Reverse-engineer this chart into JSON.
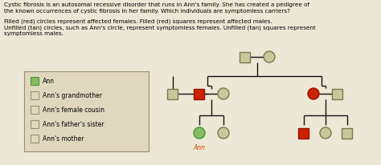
{
  "bg_color": "#ede8d5",
  "tan_fill": "#c8c89a",
  "tan_edge": "#7a7850",
  "red_fill": "#cc2200",
  "red_edge": "#991100",
  "green_fill": "#88bb66",
  "green_edge": "#449933",
  "legend_bg": "#e0d8be",
  "legend_edge": "#999070",
  "white_fill": "#e0d8be",
  "white_edge": "#999070",
  "line_color": "#111111",
  "text_line1": "Cystic fibrosis is an autosomal recessive disorder that runs in Ann's family. She has created a pedigree of",
  "text_line2": "the known occurrences of cystic fibrosis in her family. Which individuals are symptomless carriers?",
  "text_line3": "Filled (red) circles represent affected females. Filled (red) squares represent affected males.",
  "text_line4": "Unfilled (tan) circles, such as Ann's circle, represent symptomless females. Unfilled (tan) squares represent",
  "text_line5": "symptomless males.",
  "legend_labels": [
    "Ann",
    "Ann's grandmother",
    "Ann's female cousin",
    "Ann's father's sister",
    "Ann's mother"
  ]
}
